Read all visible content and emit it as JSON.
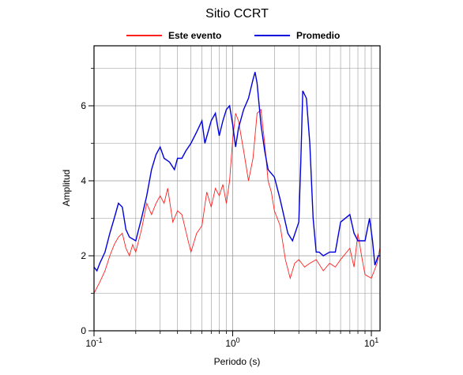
{
  "chart_data": {
    "type": "line",
    "title": "Sitio CCRT",
    "xlabel": "Periodo (s)",
    "ylabel": "Amplitud",
    "xscale": "log",
    "grid": true,
    "legend": "top",
    "xlim": [
      0.1,
      11.55
    ],
    "ylim": [
      0,
      7.6
    ],
    "xticks": [
      {
        "value": 0.1,
        "label": "10-1"
      },
      {
        "value": 1,
        "label": "100"
      },
      {
        "value": 10,
        "label": "101"
      }
    ],
    "xminor": [
      0.2,
      0.3,
      0.4,
      0.5,
      0.6,
      0.7,
      0.8,
      0.9,
      2,
      3,
      4,
      5,
      6,
      7,
      8,
      9
    ],
    "yticks": [
      0,
      2,
      4,
      6
    ],
    "yminor": [
      1,
      3,
      5,
      7
    ],
    "series": [
      {
        "name": "Este evento",
        "color": "#ff2020",
        "x": [
          0.1,
          0.11,
          0.12,
          0.13,
          0.14,
          0.15,
          0.16,
          0.17,
          0.18,
          0.19,
          0.2,
          0.22,
          0.24,
          0.26,
          0.28,
          0.3,
          0.32,
          0.34,
          0.37,
          0.4,
          0.43,
          0.47,
          0.5,
          0.55,
          0.6,
          0.65,
          0.7,
          0.75,
          0.8,
          0.85,
          0.9,
          0.95,
          1.0,
          1.05,
          1.1,
          1.2,
          1.3,
          1.4,
          1.5,
          1.6,
          1.7,
          1.8,
          1.9,
          2.0,
          2.2,
          2.4,
          2.6,
          2.8,
          3.0,
          3.3,
          3.6,
          4.0,
          4.5,
          5.0,
          5.5,
          6.0,
          7.0,
          7.5,
          8.0,
          8.5,
          9.0,
          10.0,
          11.0,
          11.5
        ],
        "values": [
          1.0,
          1.3,
          1.6,
          2.0,
          2.3,
          2.5,
          2.6,
          2.2,
          2.0,
          2.3,
          2.1,
          2.7,
          3.4,
          3.1,
          3.4,
          3.6,
          3.4,
          3.8,
          2.9,
          3.2,
          3.1,
          2.5,
          2.1,
          2.6,
          2.8,
          3.7,
          3.3,
          3.8,
          3.6,
          3.9,
          3.4,
          4.0,
          5.1,
          5.8,
          5.6,
          4.8,
          4.0,
          4.6,
          5.8,
          5.9,
          5.0,
          4.0,
          3.7,
          3.2,
          2.8,
          1.9,
          1.4,
          1.8,
          1.9,
          1.7,
          1.8,
          1.9,
          1.6,
          1.8,
          1.7,
          1.9,
          2.2,
          1.7,
          2.6,
          2.0,
          1.5,
          1.4,
          1.8,
          2.2
        ]
      },
      {
        "name": "Promedio",
        "color": "#0000dd",
        "x": [
          0.1,
          0.105,
          0.11,
          0.12,
          0.13,
          0.14,
          0.15,
          0.16,
          0.17,
          0.18,
          0.2,
          0.22,
          0.24,
          0.26,
          0.28,
          0.3,
          0.32,
          0.35,
          0.38,
          0.4,
          0.43,
          0.46,
          0.5,
          0.55,
          0.6,
          0.63,
          0.7,
          0.75,
          0.8,
          0.85,
          0.9,
          0.95,
          1.0,
          1.05,
          1.1,
          1.2,
          1.3,
          1.4,
          1.45,
          1.5,
          1.6,
          1.7,
          1.8,
          2.0,
          2.2,
          2.5,
          2.7,
          3.0,
          3.1,
          3.2,
          3.4,
          3.6,
          3.8,
          4.0,
          4.2,
          4.5,
          5.0,
          5.5,
          6.0,
          7.0,
          7.5,
          8.0,
          9.0,
          9.7,
          10.2,
          10.6,
          11.2,
          11.5
        ],
        "values": [
          1.7,
          1.6,
          1.8,
          2.1,
          2.6,
          3.0,
          3.4,
          3.3,
          2.7,
          2.5,
          2.4,
          3.0,
          3.6,
          4.3,
          4.7,
          4.9,
          4.6,
          4.5,
          4.3,
          4.6,
          4.6,
          4.8,
          5.0,
          5.3,
          5.6,
          5.0,
          5.6,
          5.8,
          5.2,
          5.6,
          5.9,
          6.0,
          5.5,
          4.9,
          5.4,
          5.9,
          6.2,
          6.7,
          6.9,
          6.6,
          5.5,
          4.8,
          4.3,
          4.1,
          3.5,
          2.6,
          2.4,
          2.9,
          4.5,
          6.4,
          6.2,
          5.0,
          3.0,
          2.1,
          2.1,
          2.0,
          2.1,
          2.1,
          2.9,
          3.1,
          2.6,
          2.4,
          2.4,
          3.0,
          2.4,
          1.75,
          2.0,
          2.0
        ]
      }
    ]
  }
}
